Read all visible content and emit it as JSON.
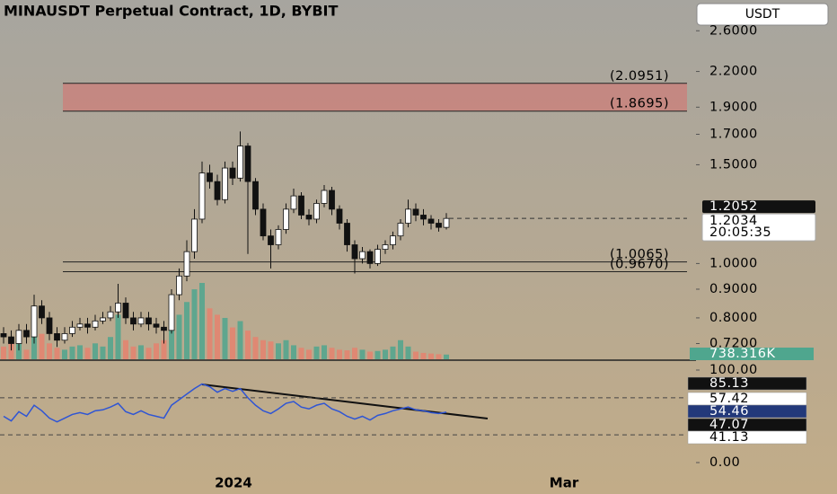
{
  "header": {
    "title": "MINAUSDT Perpetual Contract, 1D, BYBIT",
    "currency_button": "USDT"
  },
  "chart_data": {
    "type": "candlestick",
    "log_scale": true,
    "ylim": [
      0.675,
      2.95
    ],
    "yticks": [
      {
        "value": 2.6,
        "label": "2.6000"
      },
      {
        "value": 2.2,
        "label": "2.2000"
      },
      {
        "value": 1.9,
        "label": "1.9000"
      },
      {
        "value": 1.7,
        "label": "1.7000"
      },
      {
        "value": 1.5,
        "label": "1.5000"
      },
      {
        "value": 1,
        "label": "1.0000"
      },
      {
        "value": 0.9,
        "label": "0.9000"
      },
      {
        "value": 0.8,
        "label": "0.8000"
      },
      {
        "value": 0.72,
        "label": "0.7200"
      }
    ],
    "xticks": [
      "2024",
      "Mar"
    ],
    "candles": {
      "open": [
        0.75,
        0.74,
        0.72,
        0.76,
        0.74,
        0.84,
        0.8,
        0.75,
        0.73,
        0.75,
        0.77,
        0.78,
        0.77,
        0.79,
        0.8,
        0.82,
        0.85,
        0.8,
        0.78,
        0.8,
        0.78,
        0.77,
        0.76,
        0.88,
        0.95,
        1.05,
        1.2,
        1.45,
        1.4,
        1.3,
        1.48,
        1.42,
        1.62,
        1.4,
        1.25,
        1.12,
        1.08,
        1.15,
        1.25,
        1.32,
        1.22,
        1.2,
        1.28,
        1.35,
        1.25,
        1.18,
        1.08,
        1.02,
        1.05,
        1.0,
        1.06,
        1.08,
        1.12,
        1.18,
        1.25,
        1.22,
        1.2,
        1.18,
        1.16
      ],
      "high": [
        0.77,
        0.76,
        0.78,
        0.78,
        0.88,
        0.86,
        0.82,
        0.77,
        0.77,
        0.79,
        0.8,
        0.8,
        0.81,
        0.82,
        0.84,
        0.92,
        0.87,
        0.82,
        0.82,
        0.82,
        0.8,
        0.79,
        0.9,
        0.98,
        1.1,
        1.25,
        1.52,
        1.5,
        1.44,
        1.52,
        1.52,
        1.72,
        1.64,
        1.42,
        1.28,
        1.15,
        1.17,
        1.28,
        1.36,
        1.34,
        1.25,
        1.3,
        1.38,
        1.37,
        1.27,
        1.2,
        1.1,
        1.07,
        1.06,
        1.08,
        1.1,
        1.14,
        1.2,
        1.3,
        1.28,
        1.25,
        1.22,
        1.2,
        1.23
      ],
      "low": [
        0.72,
        0.7,
        0.7,
        0.72,
        0.72,
        0.78,
        0.73,
        0.71,
        0.72,
        0.74,
        0.76,
        0.75,
        0.76,
        0.78,
        0.79,
        0.8,
        0.78,
        0.76,
        0.77,
        0.76,
        0.75,
        0.72,
        0.75,
        0.86,
        0.93,
        1.02,
        1.18,
        1.36,
        1.27,
        1.28,
        1.38,
        1.4,
        1.04,
        1.22,
        1.1,
        0.98,
        1.06,
        1.13,
        1.23,
        1.2,
        1.17,
        1.18,
        1.26,
        1.22,
        1.15,
        1.05,
        0.96,
        1.0,
        0.98,
        0.99,
        1.04,
        1.06,
        1.1,
        1.16,
        1.19,
        1.17,
        1.15,
        1.14,
        1.15
      ],
      "close": [
        0.74,
        0.72,
        0.76,
        0.74,
        0.84,
        0.8,
        0.75,
        0.73,
        0.75,
        0.77,
        0.78,
        0.77,
        0.79,
        0.8,
        0.82,
        0.85,
        0.8,
        0.78,
        0.8,
        0.78,
        0.77,
        0.76,
        0.88,
        0.95,
        1.05,
        1.2,
        1.45,
        1.4,
        1.3,
        1.48,
        1.42,
        1.62,
        1.4,
        1.25,
        1.12,
        1.08,
        1.15,
        1.25,
        1.32,
        1.22,
        1.2,
        1.28,
        1.35,
        1.25,
        1.18,
        1.08,
        1.02,
        1.05,
        1.0,
        1.06,
        1.08,
        1.12,
        1.18,
        1.25,
        1.22,
        1.2,
        1.18,
        1.16,
        1.2034
      ],
      "up_color": "#ffffff",
      "down_color": "#111111"
    },
    "volume": {
      "up_color": "#4fa68e",
      "down_color": "#e5826f",
      "values": [
        2000,
        2500,
        3000,
        1500,
        6000,
        4000,
        2500,
        1800,
        1500,
        2000,
        2200,
        1800,
        2500,
        2000,
        3500,
        7000,
        3000,
        2000,
        2200,
        1800,
        2500,
        3000,
        5500,
        7000,
        9000,
        11000,
        12000,
        8000,
        7000,
        6500,
        5000,
        6000,
        4500,
        3500,
        3000,
        2800,
        2500,
        3000,
        2200,
        1800,
        1500,
        2000,
        2200,
        1800,
        1500,
        1400,
        1800,
        1500,
        1200,
        1300,
        1500,
        2000,
        3000,
        2000,
        1200,
        1000,
        900,
        800,
        738.316
      ],
      "value_labels": [
        null,
        null,
        null,
        null,
        null,
        null,
        null,
        null,
        null,
        null,
        null,
        null,
        null,
        null,
        null,
        null,
        null,
        null,
        null,
        null,
        null,
        null,
        null,
        null,
        null,
        null,
        null,
        null,
        null,
        null,
        null,
        null,
        null,
        null,
        null,
        null,
        null,
        null,
        null,
        null,
        null,
        null,
        null,
        null,
        null,
        null,
        null,
        null,
        null,
        null,
        null,
        null,
        null,
        null,
        null,
        null,
        null,
        null,
        "738.316K"
      ]
    },
    "levels": [
      {
        "value": 2.0951,
        "label": "(2.0951)"
      },
      {
        "value": 1.8695,
        "label": "(1.8695)"
      },
      {
        "value": 1.0065,
        "label": "(1.0065)"
      },
      {
        "value": 0.967,
        "label": "(0.9670)"
      }
    ],
    "zone_color": "#d9706e",
    "price_labels": {
      "marker": "1.2052",
      "countdown": "20:05:35"
    },
    "rsi": {
      "color": "#2f55d4",
      "values": [
        50,
        45,
        55,
        50,
        62,
        56,
        48,
        44,
        48,
        52,
        54,
        52,
        56,
        57,
        60,
        64,
        55,
        52,
        56,
        52,
        50,
        48,
        62,
        68,
        74,
        80,
        85,
        82,
        76,
        80,
        77,
        80,
        70,
        62,
        56,
        53,
        58,
        64,
        66,
        60,
        58,
        62,
        64,
        58,
        55,
        50,
        47,
        50,
        46,
        51,
        53,
        56,
        58,
        60,
        57,
        56,
        54,
        53,
        54.46
      ],
      "ylim": [
        0,
        100
      ],
      "yticks": [
        {
          "value": 100,
          "label": "100.00"
        },
        {
          "value": 0,
          "label": "0.00"
        }
      ],
      "bands": [
        70,
        30
      ],
      "markers": [
        "85.13",
        "57.42",
        "54.46",
        "47.07",
        "41.13"
      ]
    }
  }
}
